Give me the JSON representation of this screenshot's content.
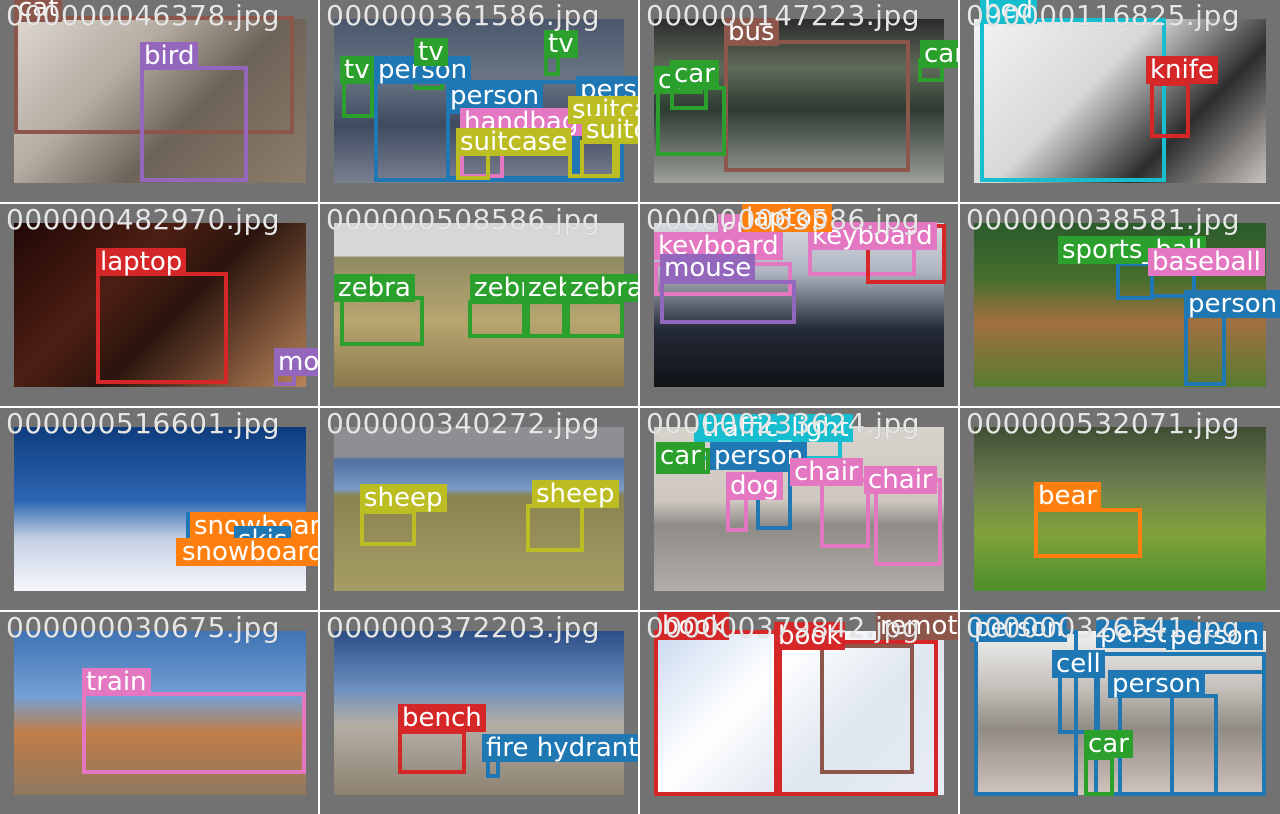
{
  "tiles": [
    {
      "filename": "000000046378.jpg",
      "labels": [
        "cat",
        "bird"
      ]
    },
    {
      "filename": "000000361586.jpg",
      "labels": [
        "tv",
        "person",
        "tv",
        "tv",
        "person",
        "person",
        "handbag",
        "suitcase",
        "suitcase",
        "suitcase"
      ]
    },
    {
      "filename": "000000147223.jpg",
      "labels": [
        "bus",
        "car",
        "car",
        "car"
      ]
    },
    {
      "filename": "000000116825.jpg",
      "labels": [
        "bed",
        "knife"
      ]
    },
    {
      "filename": "000000482970.jpg",
      "labels": [
        "laptop",
        "mouse"
      ]
    },
    {
      "filename": "000000508586.jpg",
      "labels": [
        "zebra",
        "zebra",
        "zebra",
        "zebra"
      ]
    },
    {
      "filename": "000000063586.jpg",
      "labels": [
        "cup",
        "keyboard",
        "keyboard",
        "mouse",
        "laptop"
      ]
    },
    {
      "filename": "000000038581.jpg",
      "labels": [
        "sports_ball",
        "baseball",
        "person"
      ]
    },
    {
      "filename": "000000516601.jpg",
      "labels": [
        "snowboard",
        "skis",
        "snowboard"
      ]
    },
    {
      "filename": "000000340272.jpg",
      "labels": [
        "sheep",
        "sheep"
      ]
    },
    {
      "filename": "000000233624.jpg",
      "labels": [
        "traffic_light",
        "car",
        "person",
        "dog",
        "chair",
        "chair"
      ]
    },
    {
      "filename": "000000532071.jpg",
      "labels": [
        "bear"
      ]
    },
    {
      "filename": "000000030675.jpg",
      "labels": [
        "train"
      ]
    },
    {
      "filename": "000000372203.jpg",
      "labels": [
        "bench",
        "fire hydrant"
      ]
    },
    {
      "filename": "000000379842.jpg",
      "labels": [
        "book",
        "book",
        "remote"
      ]
    },
    {
      "filename": "000000326541.jpg",
      "labels": [
        "person",
        "person",
        "person",
        "cell",
        "person",
        "car"
      ]
    }
  ],
  "colors": {
    "green": "#2ca02c",
    "blue": "#1f77b4",
    "red": "#d62728",
    "purple": "#9467bd",
    "pink": "#e377c2",
    "orange": "#ff7f0e",
    "olive": "#bcbd22",
    "cyan": "#17becf",
    "brown": "#8c564b"
  }
}
